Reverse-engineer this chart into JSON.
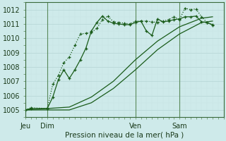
{
  "bg_color": "#ceeaea",
  "grid_major_color": "#b8d8d8",
  "grid_minor_color": "#c8e4e4",
  "line_color": "#1a5c1a",
  "xlabel": "Pression niveau de la mer( hPa )",
  "ylim": [
    1004.5,
    1012.5
  ],
  "yticks": [
    1005,
    1006,
    1007,
    1008,
    1009,
    1010,
    1011,
    1012
  ],
  "xlim": [
    0,
    108
  ],
  "day_positions": [
    0,
    12,
    60,
    84
  ],
  "day_labels": [
    "Jeu",
    "Dim",
    "Ven",
    "Sam"
  ],
  "vline_positions": [
    12,
    60,
    84
  ],
  "series": [
    {
      "x": [
        0,
        3,
        12,
        15,
        18,
        21,
        24,
        27,
        30,
        33,
        36,
        39,
        42,
        45,
        48,
        51,
        54,
        57,
        60,
        63,
        66,
        69,
        72,
        75,
        78,
        81,
        84,
        87,
        90,
        93,
        96,
        99,
        102
      ],
      "y": [
        1005.0,
        1005.15,
        1005.1,
        1006.8,
        1007.4,
        1008.3,
        1008.7,
        1009.5,
        1010.3,
        1010.35,
        1010.4,
        1010.7,
        1011.3,
        1011.55,
        1011.15,
        1011.1,
        1011.05,
        1011.0,
        1011.2,
        1011.2,
        1011.2,
        1011.15,
        1011.1,
        1011.2,
        1011.3,
        1011.5,
        1011.3,
        1012.1,
        1012.0,
        1012.05,
        1011.5,
        1011.1,
        1010.9
      ],
      "marker": true,
      "linestyle": "dotted"
    },
    {
      "x": [
        0,
        3,
        12,
        15,
        18,
        21,
        24,
        27,
        30,
        33,
        36,
        39,
        42,
        45,
        48,
        51,
        54,
        57,
        60,
        63,
        66,
        69,
        72,
        75,
        78,
        81,
        84,
        87,
        90,
        93,
        96,
        99,
        102
      ],
      "y": [
        1005.0,
        1005.1,
        1005.1,
        1005.9,
        1007.1,
        1007.8,
        1007.2,
        1007.8,
        1008.5,
        1009.3,
        1010.5,
        1011.1,
        1011.55,
        1011.2,
        1011.05,
        1011.0,
        1010.95,
        1010.95,
        1011.1,
        1011.2,
        1010.5,
        1010.2,
        1011.35,
        1011.15,
        1011.2,
        1011.3,
        1011.35,
        1011.5,
        1011.5,
        1011.55,
        1011.15,
        1011.1,
        1010.95
      ],
      "marker": true,
      "linestyle": "solid"
    },
    {
      "x": [
        0,
        12,
        24,
        36,
        48,
        60,
        72,
        84,
        96,
        102
      ],
      "y": [
        1005.0,
        1005.1,
        1005.2,
        1005.9,
        1007.0,
        1008.5,
        1009.8,
        1010.8,
        1011.4,
        1011.5
      ],
      "marker": false,
      "linestyle": "solid"
    },
    {
      "x": [
        0,
        12,
        24,
        36,
        48,
        60,
        72,
        84,
        96,
        102
      ],
      "y": [
        1005.0,
        1005.0,
        1005.0,
        1005.5,
        1006.5,
        1007.8,
        1009.2,
        1010.3,
        1011.1,
        1011.2
      ],
      "marker": false,
      "linestyle": "solid"
    }
  ]
}
